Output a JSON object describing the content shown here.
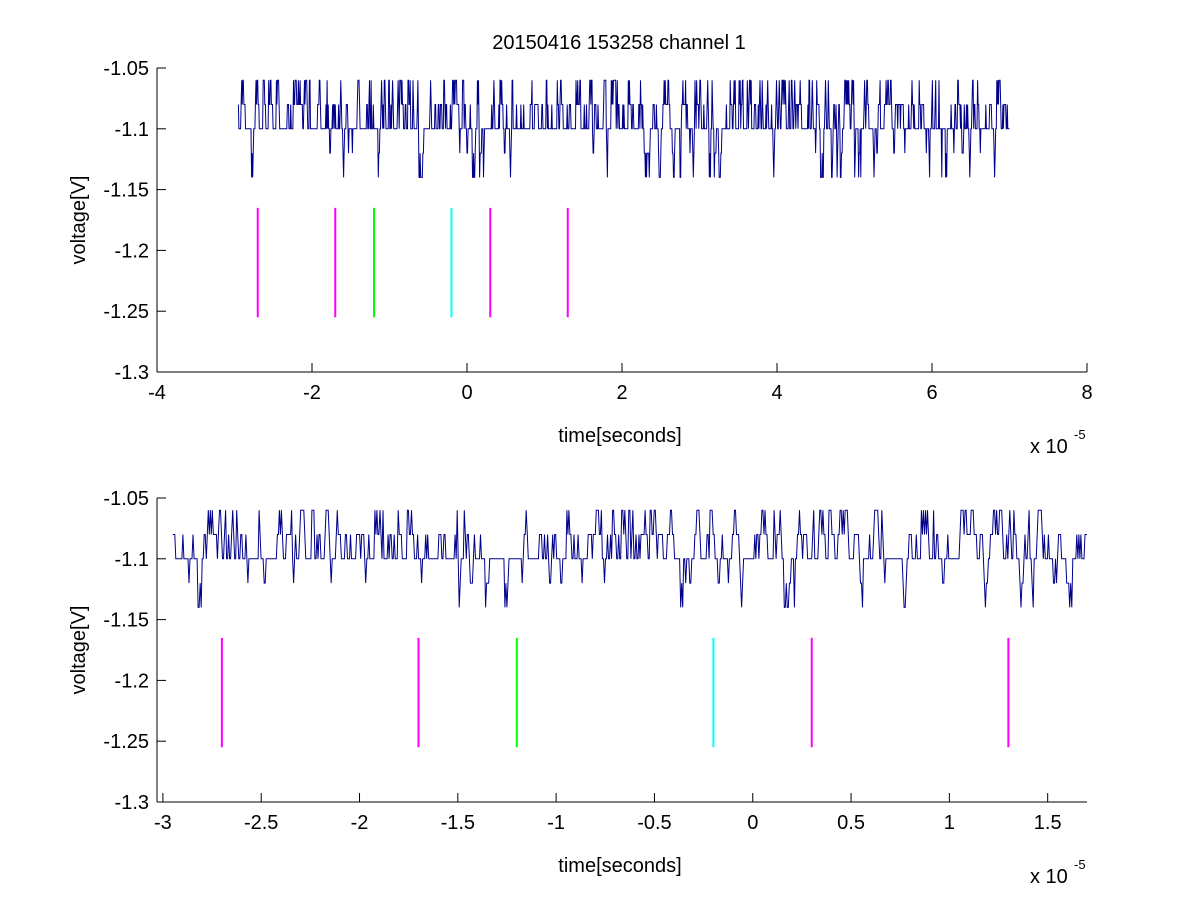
{
  "figure_title": "20150416 153258 channel 1",
  "chart_data": [
    {
      "type": "line",
      "title": "20150416 153258 channel 1",
      "xlabel": "time[seconds]",
      "ylabel": "voltage[V]",
      "x_multiplier_label": "x 10",
      "x_multiplier_exponent": "-5",
      "xlim": [
        -4,
        8
      ],
      "ylim": [
        -1.3,
        -1.05
      ],
      "x_ticks": [
        -4,
        -2,
        0,
        2,
        4,
        6,
        8
      ],
      "x_tick_labels": [
        "-4",
        "-2",
        "0",
        "2",
        "4",
        "6",
        "8"
      ],
      "y_ticks": [
        -1.05,
        -1.1,
        -1.15,
        -1.2,
        -1.25,
        -1.3
      ],
      "y_tick_labels": [
        "-1.05",
        "-1.1",
        "-1.15",
        "-1.2",
        "-1.25",
        "-1.3"
      ],
      "grid": false,
      "series": [
        {
          "color": "#00008b",
          "x_range": [
            -2.95,
            7.0
          ],
          "baseline": -1.1,
          "levels": [
            -1.06,
            -1.08,
            -1.1,
            -1.12,
            -1.14
          ],
          "description_values": "quantized noisy voltage trace between -1.14 and -1.06 around baseline -1.1"
        }
      ],
      "markers": {
        "y_range": [
          -1.255,
          -1.165
        ],
        "lines": [
          {
            "x": -2.7,
            "color": "#ff00ff"
          },
          {
            "x": -1.7,
            "color": "#ff00ff"
          },
          {
            "x": -1.2,
            "color": "#00ff00"
          },
          {
            "x": -0.2,
            "color": "#00ffff"
          },
          {
            "x": 0.3,
            "color": "#ff00ff"
          },
          {
            "x": 1.3,
            "color": "#ff00ff"
          }
        ]
      }
    },
    {
      "type": "line",
      "title": "",
      "xlabel": "time[seconds]",
      "ylabel": "voltage[V]",
      "x_multiplier_label": "x 10",
      "x_multiplier_exponent": "-5",
      "xlim": [
        -3.03,
        1.7
      ],
      "ylim": [
        -1.3,
        -1.05
      ],
      "x_ticks": [
        -3,
        -2.5,
        -2,
        -1.5,
        -1,
        -0.5,
        0,
        0.5,
        1,
        1.5
      ],
      "x_tick_labels": [
        "-3",
        "-2.5",
        "-2",
        "-1.5",
        "-1",
        "-0.5",
        "0",
        "0.5",
        "1",
        "1.5"
      ],
      "y_ticks": [
        -1.05,
        -1.1,
        -1.15,
        -1.2,
        -1.25,
        -1.3
      ],
      "y_tick_labels": [
        "-1.05",
        "-1.1",
        "-1.15",
        "-1.2",
        "-1.25",
        "-1.3"
      ],
      "grid": false,
      "series": [
        {
          "color": "#00008b",
          "x_range": [
            -2.95,
            1.7
          ],
          "baseline": -1.1,
          "levels": [
            -1.06,
            -1.08,
            -1.1,
            -1.12,
            -1.14
          ],
          "description_values": "quantized noisy voltage trace between -1.14 and -1.06 around baseline -1.1"
        }
      ],
      "markers": {
        "y_range": [
          -1.255,
          -1.165
        ],
        "lines": [
          {
            "x": -2.7,
            "color": "#ff00ff"
          },
          {
            "x": -1.7,
            "color": "#ff00ff"
          },
          {
            "x": -1.2,
            "color": "#00ff00"
          },
          {
            "x": -0.2,
            "color": "#00ffff"
          },
          {
            "x": 0.3,
            "color": "#ff00ff"
          },
          {
            "x": 1.3,
            "color": "#ff00ff"
          }
        ]
      }
    }
  ]
}
